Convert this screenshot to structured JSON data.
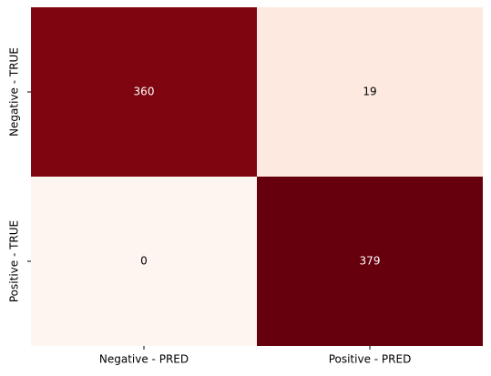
{
  "chart_data": {
    "type": "heatmap",
    "rows": [
      "Negative - TRUE",
      "Positive - TRUE"
    ],
    "columns": [
      "Negative - PRED",
      "Positive - PRED"
    ],
    "values": [
      [
        360,
        19
      ],
      [
        0,
        379
      ]
    ],
    "colors": [
      [
        "#7f0510",
        "#fee9e1"
      ],
      [
        "#fff5f0",
        "#67000d"
      ]
    ]
  }
}
